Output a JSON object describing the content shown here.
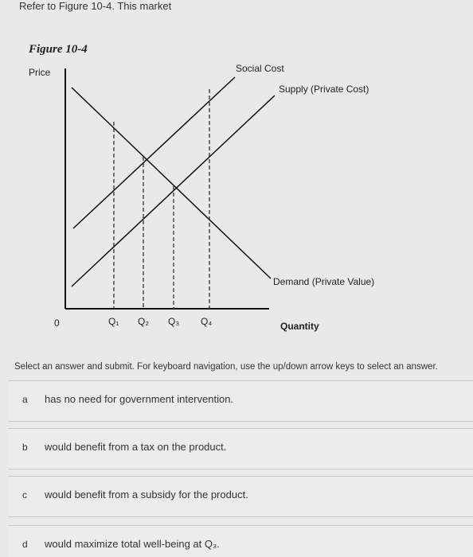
{
  "header": {
    "question": "Refer to Figure 10-4. This market"
  },
  "figure": {
    "title": "Figure 10-4",
    "y_axis_label": "Price",
    "x_axis_label": "Quantity",
    "origin": "0",
    "curves": {
      "social_cost": "Social Cost",
      "supply": "Supply (Private Cost)",
      "demand": "Demand (Private Value)"
    },
    "quantities": [
      "Q₁",
      "Q₂",
      "Q₃",
      "Q₄"
    ]
  },
  "instructions": "Select an answer and submit. For keyboard navigation, use the up/down arrow keys to select an answer.",
  "options": [
    {
      "letter": "a",
      "text": "has no need for government intervention."
    },
    {
      "letter": "b",
      "text": "would benefit from a tax on the product."
    },
    {
      "letter": "c",
      "text": "would benefit from a subsidy for the product."
    },
    {
      "letter": "d",
      "text": "would maximize total well-being at Q₃."
    }
  ]
}
